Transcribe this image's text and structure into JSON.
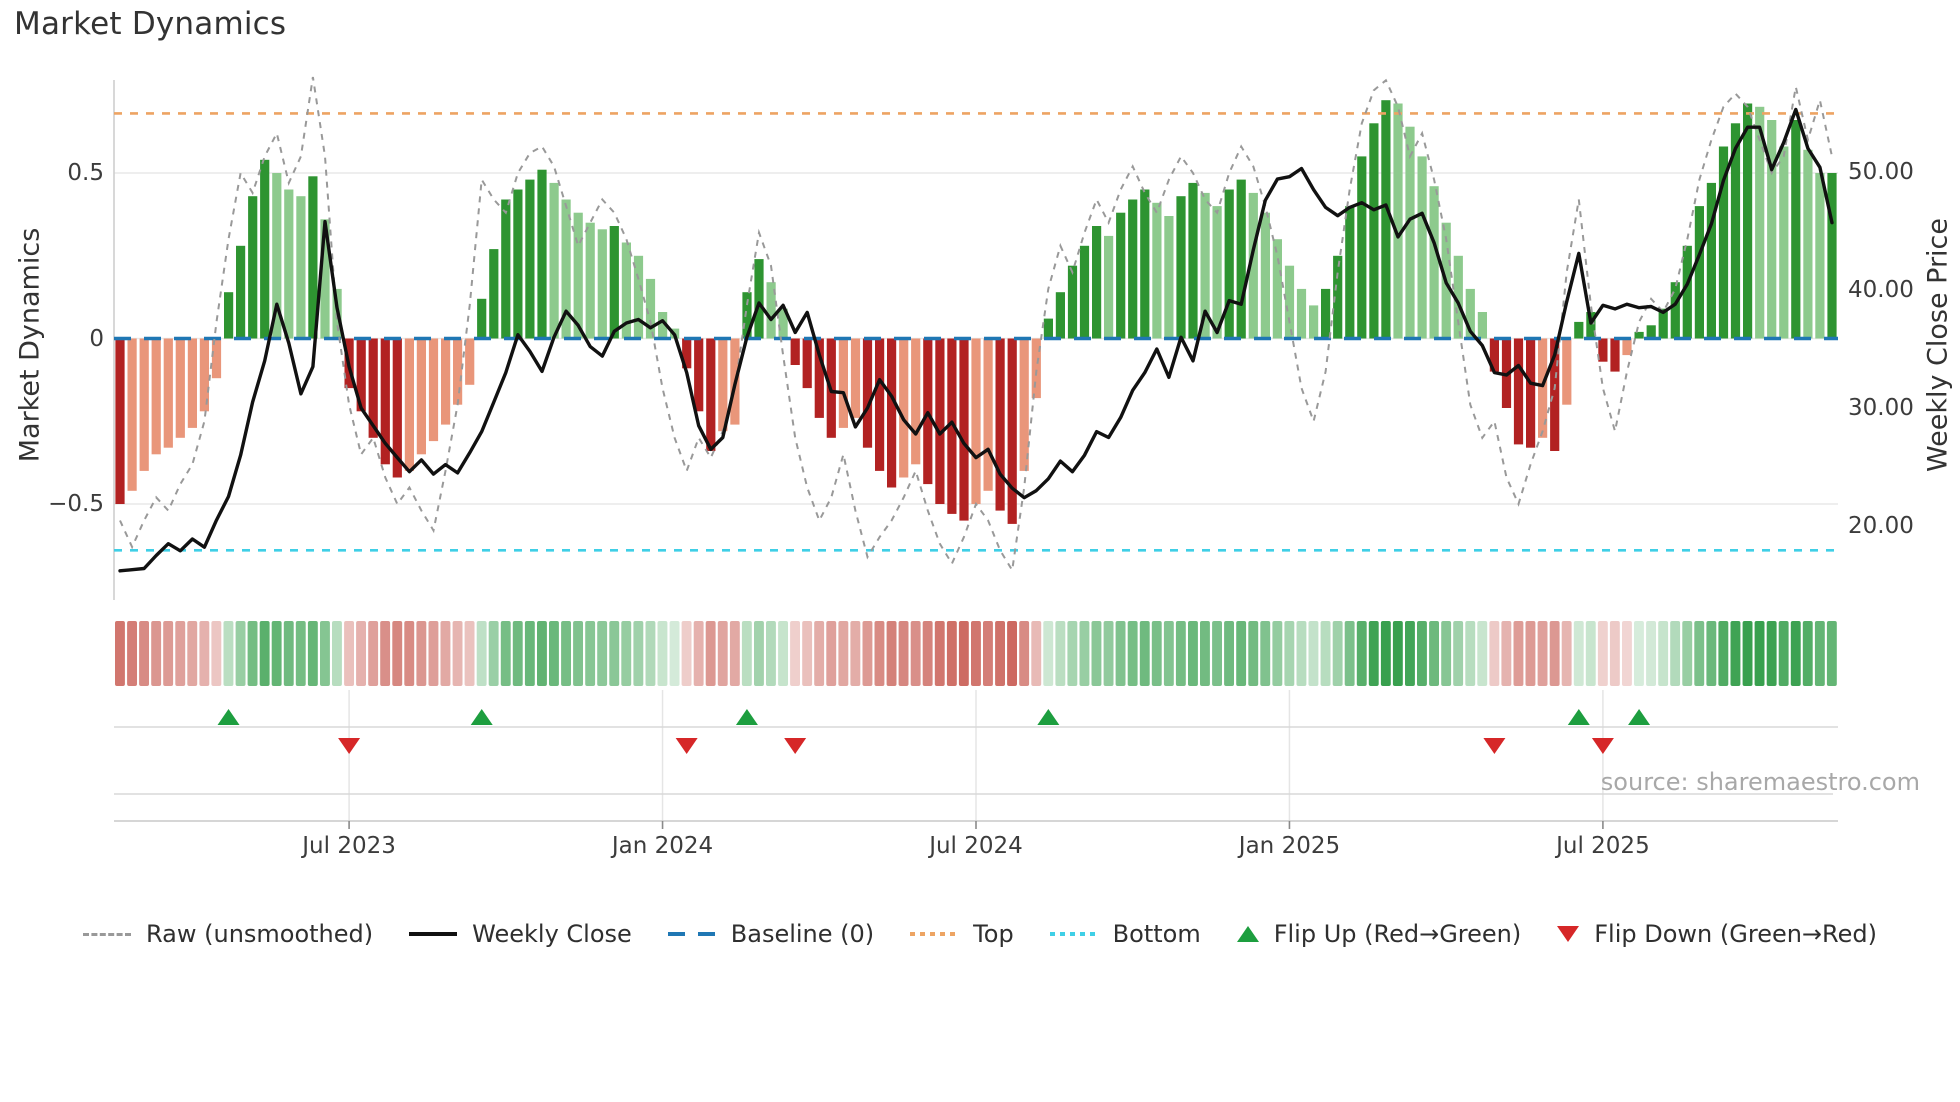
{
  "title": "Market Dynamics",
  "source": "source: sharemaestro.com",
  "axes": {
    "left_title": "Market Dynamics",
    "right_title": "Weekly Close Price",
    "left_ticks": [
      {
        "value": 0.5,
        "label": "0.5"
      },
      {
        "value": 0.0,
        "label": "0"
      },
      {
        "value": -0.5,
        "label": "−0.5"
      }
    ],
    "right_ticks": [
      {
        "value": 50,
        "label": "50.00"
      },
      {
        "value": 40,
        "label": "40.00"
      },
      {
        "value": 30,
        "label": "30.00"
      },
      {
        "value": 20,
        "label": "20.00"
      }
    ],
    "x_ticks": [
      {
        "week": 19,
        "label": "Jul 2023"
      },
      {
        "week": 45,
        "label": "Jan 2024"
      },
      {
        "week": 71,
        "label": "Jul 2024"
      },
      {
        "week": 97,
        "label": "Jan 2025"
      },
      {
        "week": 123,
        "label": "Jul 2025"
      }
    ]
  },
  "chart_data": {
    "type": "bar",
    "subtype": "oscillator-bars with overlaid price line, raw oscillator line, heatmap strip and flip markers",
    "n_weeks": 143,
    "ylim_left": [
      -0.79,
      0.78
    ],
    "ylim_right_labels": [
      20,
      30,
      40,
      50
    ],
    "baseline": 0,
    "top": 0.68,
    "bottom": -0.64,
    "oscillator": [
      -0.5,
      -0.46,
      -0.4,
      -0.35,
      -0.33,
      -0.3,
      -0.27,
      -0.22,
      -0.12,
      0.14,
      0.28,
      0.43,
      0.54,
      0.5,
      0.45,
      0.43,
      0.49,
      0.36,
      0.15,
      -0.15,
      -0.22,
      -0.3,
      -0.38,
      -0.42,
      -0.4,
      -0.35,
      -0.31,
      -0.26,
      -0.2,
      -0.14,
      0.12,
      0.27,
      0.42,
      0.45,
      0.48,
      0.51,
      0.47,
      0.42,
      0.38,
      0.35,
      0.33,
      0.34,
      0.29,
      0.25,
      0.18,
      0.08,
      0.03,
      -0.09,
      -0.22,
      -0.34,
      -0.28,
      -0.26,
      0.14,
      0.24,
      0.17,
      0.09,
      -0.08,
      -0.15,
      -0.24,
      -0.3,
      -0.27,
      -0.24,
      -0.33,
      -0.4,
      -0.45,
      -0.42,
      -0.38,
      -0.44,
      -0.5,
      -0.53,
      -0.55,
      -0.5,
      -0.46,
      -0.52,
      -0.56,
      -0.4,
      -0.18,
      0.06,
      0.14,
      0.22,
      0.28,
      0.34,
      0.31,
      0.38,
      0.42,
      0.45,
      0.41,
      0.37,
      0.43,
      0.47,
      0.44,
      0.4,
      0.45,
      0.48,
      0.44,
      0.38,
      0.3,
      0.22,
      0.15,
      0.1,
      0.15,
      0.25,
      0.4,
      0.55,
      0.65,
      0.72,
      0.71,
      0.64,
      0.55,
      0.46,
      0.35,
      0.25,
      0.15,
      0.08,
      -0.1,
      -0.21,
      -0.32,
      -0.33,
      -0.3,
      -0.34,
      -0.2,
      0.05,
      0.08,
      -0.07,
      -0.1,
      -0.05,
      0.02,
      0.04,
      0.09,
      0.17,
      0.28,
      0.4,
      0.47,
      0.58,
      0.65,
      0.71,
      0.7,
      0.66,
      0.58,
      0.66,
      0.57,
      0.5,
      0.5
    ],
    "weekly_close": [
      16.2,
      16.3,
      16.4,
      17.5,
      18.5,
      17.9,
      18.9,
      18.2,
      20.5,
      22.5,
      26.0,
      30.5,
      34.0,
      38.8,
      35.5,
      31.2,
      33.5,
      45.8,
      38.5,
      33.5,
      30.0,
      28.5,
      27.0,
      25.8,
      24.6,
      25.6,
      24.4,
      25.2,
      24.5,
      26.2,
      28.0,
      30.5,
      33.0,
      36.2,
      34.8,
      33.1,
      36.0,
      38.2,
      37.0,
      35.2,
      34.4,
      36.5,
      37.2,
      37.5,
      36.8,
      37.4,
      36.2,
      33.0,
      28.5,
      26.5,
      27.5,
      32.0,
      36.0,
      38.9,
      37.5,
      38.7,
      36.4,
      38.1,
      34.5,
      31.4,
      31.3,
      28.4,
      30.0,
      32.4,
      31.0,
      29.0,
      27.8,
      29.6,
      27.8,
      28.8,
      27.0,
      25.8,
      26.5,
      24.4,
      23.2,
      22.4,
      23.0,
      24.0,
      25.5,
      24.6,
      26.0,
      28.0,
      27.5,
      29.2,
      31.5,
      33.0,
      35.0,
      32.6,
      36.0,
      34.0,
      38.2,
      36.4,
      39.1,
      38.8,
      43.4,
      47.6,
      49.4,
      49.6,
      50.3,
      48.5,
      47.0,
      46.3,
      47.0,
      47.4,
      46.8,
      47.2,
      44.5,
      46.0,
      46.5,
      44.0,
      40.6,
      38.9,
      36.5,
      35.3,
      33.0,
      32.8,
      33.6,
      32.1,
      31.9,
      34.5,
      39.0,
      43.1,
      37.2,
      38.7,
      38.4,
      38.8,
      38.5,
      38.6,
      38.1,
      38.8,
      40.5,
      43.0,
      45.6,
      49.3,
      52.0,
      53.8,
      53.8,
      50.2,
      52.5,
      55.3,
      52.0,
      50.4,
      45.7
    ],
    "raw": [
      -0.55,
      -0.63,
      -0.55,
      -0.48,
      -0.52,
      -0.44,
      -0.38,
      -0.25,
      0.05,
      0.3,
      0.5,
      0.44,
      0.55,
      0.62,
      0.47,
      0.55,
      0.79,
      0.55,
      0.05,
      -0.2,
      -0.35,
      -0.3,
      -0.42,
      -0.5,
      -0.45,
      -0.52,
      -0.58,
      -0.4,
      -0.2,
      0.1,
      0.48,
      0.42,
      0.38,
      0.5,
      0.56,
      0.58,
      0.52,
      0.4,
      0.28,
      0.35,
      0.42,
      0.38,
      0.3,
      0.18,
      0.05,
      -0.15,
      -0.3,
      -0.4,
      -0.3,
      -0.36,
      -0.28,
      -0.15,
      0.1,
      0.32,
      0.22,
      -0.05,
      -0.3,
      -0.45,
      -0.55,
      -0.48,
      -0.35,
      -0.52,
      -0.66,
      -0.6,
      -0.55,
      -0.48,
      -0.4,
      -0.52,
      -0.62,
      -0.68,
      -0.6,
      -0.5,
      -0.55,
      -0.64,
      -0.7,
      -0.45,
      -0.1,
      0.15,
      0.28,
      0.2,
      0.32,
      0.42,
      0.35,
      0.45,
      0.52,
      0.44,
      0.38,
      0.48,
      0.55,
      0.5,
      0.42,
      0.38,
      0.5,
      0.58,
      0.52,
      0.4,
      0.25,
      0.05,
      -0.15,
      -0.25,
      -0.1,
      0.2,
      0.45,
      0.65,
      0.75,
      0.78,
      0.7,
      0.55,
      0.62,
      0.48,
      0.3,
      0.05,
      -0.2,
      -0.3,
      -0.25,
      -0.42,
      -0.5,
      -0.38,
      -0.28,
      -0.15,
      0.2,
      0.42,
      0.1,
      -0.15,
      -0.28,
      -0.1,
      0.05,
      0.12,
      0.08,
      0.15,
      0.3,
      0.48,
      0.6,
      0.7,
      0.74,
      0.7,
      0.6,
      0.5,
      0.55,
      0.76,
      0.6,
      0.72,
      0.55
    ],
    "flip_up_weeks": [
      9,
      30,
      52,
      77,
      121,
      126
    ],
    "flip_down_weeks": [
      19,
      47,
      56,
      114,
      123
    ],
    "colors": {
      "bar_up_strong": "#2E9431",
      "bar_up_weak": "#8DCA8D",
      "bar_down_strong": "#B22222",
      "bar_down_weak": "#E9967A",
      "weekly_close": "#111111",
      "raw": "#999999",
      "baseline": "#1F77B4",
      "top": "#EDA463",
      "bottom": "#3FCFE6",
      "flip_up": "#1D9E3F",
      "flip_down": "#D62728",
      "heat_up": "#38A04E",
      "heat_down": "#C45046",
      "grid": "#e9e9e9",
      "spine": "#cfcfcf"
    },
    "legend_position": "bottom-center",
    "grid": "horizontal only in main panel, vertical in marker panel"
  },
  "legend": {
    "items": [
      {
        "label": "Raw (unsmoothed)",
        "type": "dashed-line",
        "color": "#999999"
      },
      {
        "label": "Weekly Close",
        "type": "solid-line",
        "color": "#111111"
      },
      {
        "label": "Baseline (0)",
        "type": "long-dash",
        "color": "#1F77B4"
      },
      {
        "label": "Top",
        "type": "dotted-line",
        "color": "#EDA463"
      },
      {
        "label": "Bottom",
        "type": "dotted-line",
        "color": "#3FCFE6"
      },
      {
        "label": "Flip Up (Red→Green)",
        "type": "triangle-up",
        "color": "#1D9E3F"
      },
      {
        "label": "Flip Down (Green→Red)",
        "type": "triangle-down",
        "color": "#D62728"
      }
    ]
  }
}
